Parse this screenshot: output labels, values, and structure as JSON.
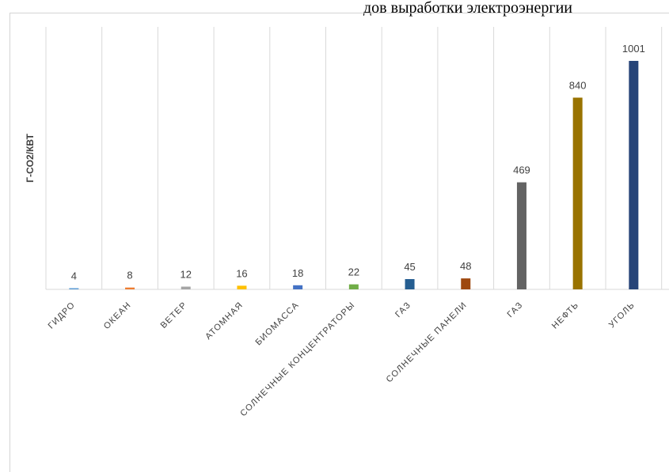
{
  "caption": "дов выработки электроэнергии",
  "chart_data": {
    "type": "bar",
    "title": "",
    "xlabel": "",
    "ylabel": "Г-CO2/КВТ",
    "ylim": [
      0,
      1150
    ],
    "grid": "vertical",
    "legend": "none",
    "categories": [
      "ГИДРО",
      "ОКЕАН",
      "ВЕТЕР",
      "АТОМНАЯ",
      "БИОМАССА",
      "СОЛНЕЧНЫЕ КОНЦЕНТРАТОРЫ",
      "ГАЗ",
      "СОЛНЕЧНЫЕ ПАНЕЛИ",
      "ГАЗ",
      "НЕФТЬ",
      "УГОЛЬ"
    ],
    "values": [
      4,
      8,
      12,
      16,
      18,
      22,
      45,
      48,
      469,
      840,
      1001
    ],
    "colors": [
      "#5B9BD5",
      "#ED7D31",
      "#A5A5A5",
      "#FFC000",
      "#4472C4",
      "#70AD47",
      "#255E91",
      "#9E480E",
      "#636363",
      "#997300",
      "#264478"
    ]
  }
}
